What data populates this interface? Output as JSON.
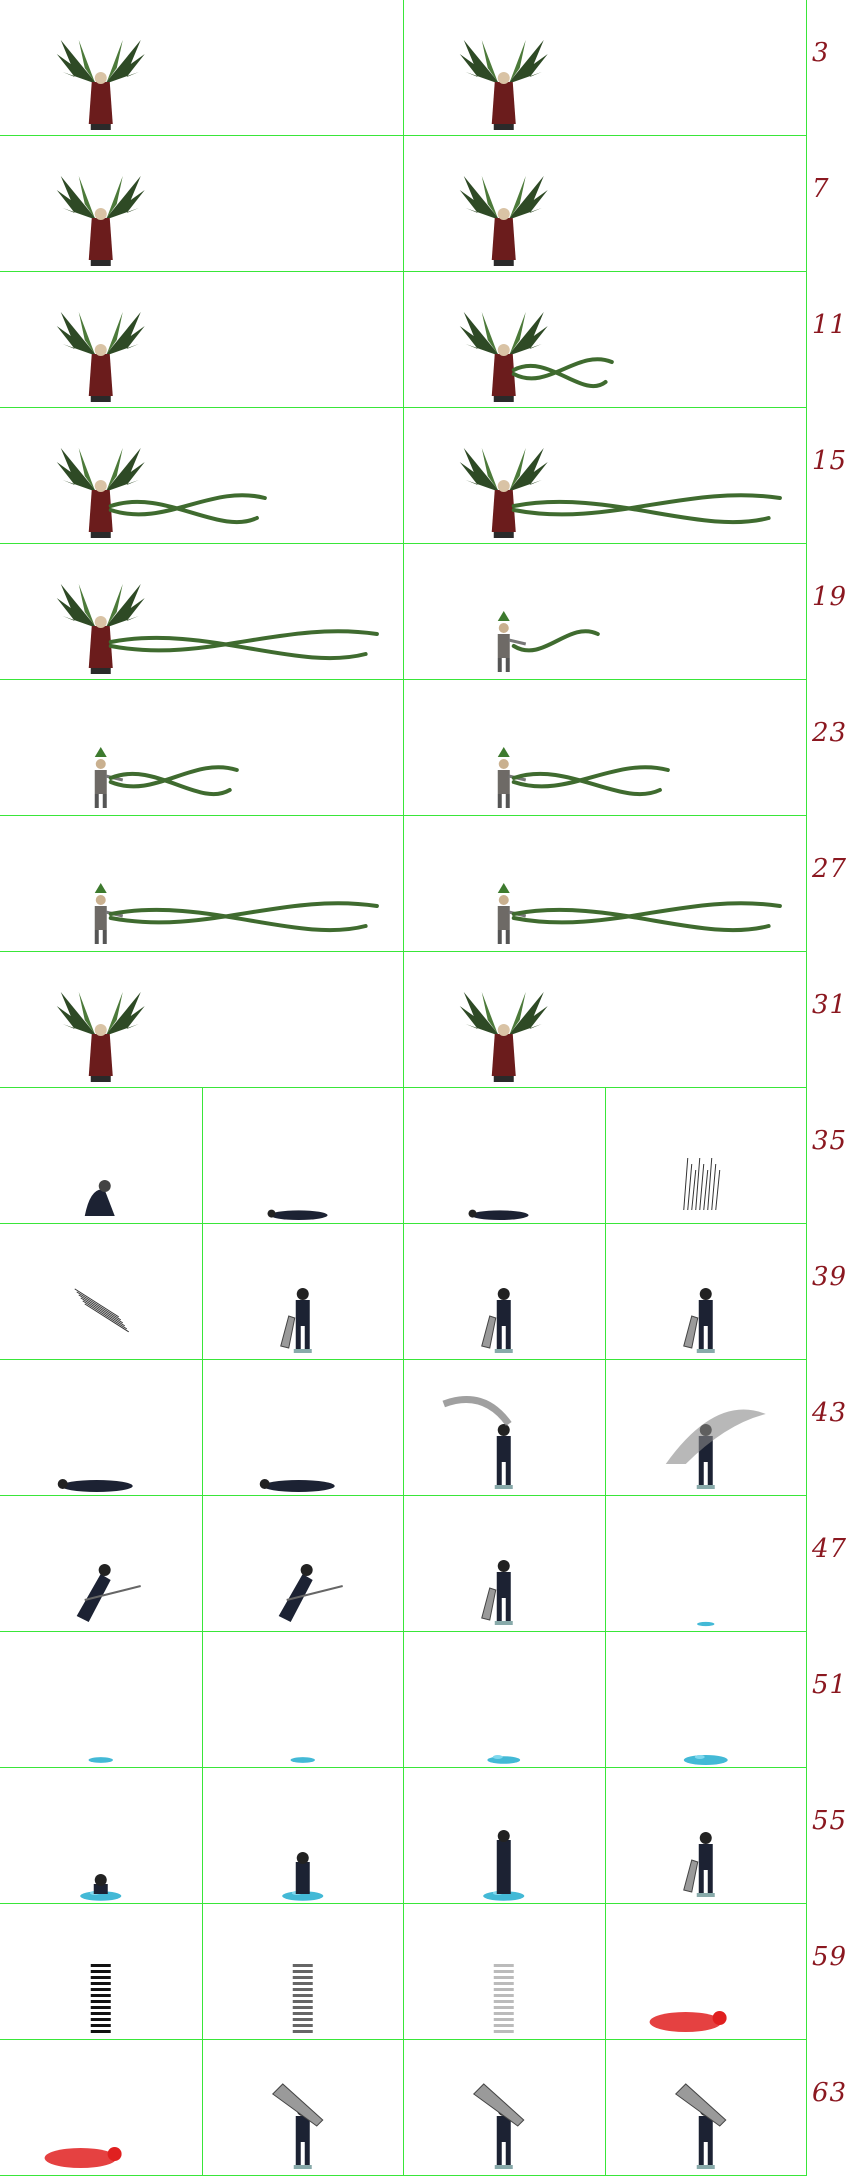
{
  "sheet": {
    "labels": [
      "3",
      "7",
      "11",
      "15",
      "19",
      "23",
      "27",
      "31",
      "35",
      "39",
      "43",
      "47",
      "51",
      "55",
      "59",
      "63"
    ]
  },
  "rows": [
    {
      "cols": 2,
      "frames": [
        "wings",
        "wings"
      ]
    },
    {
      "cols": 2,
      "frames": [
        "wings",
        "wings"
      ]
    },
    {
      "cols": 2,
      "frames": [
        "wings",
        "wings-vine1"
      ]
    },
    {
      "cols": 2,
      "frames": [
        "wings-vine2",
        "wings-vine3"
      ]
    },
    {
      "cols": 2,
      "frames": [
        "wings-vine3",
        "man-vine0"
      ]
    },
    {
      "cols": 2,
      "frames": [
        "man-vine1",
        "man-vine2"
      ]
    },
    {
      "cols": 2,
      "frames": [
        "man-vine3",
        "man-vine3"
      ]
    },
    {
      "cols": 2,
      "frames": [
        "wings",
        "wings"
      ]
    },
    {
      "cols": 4,
      "frames": [
        "ninja-crouch",
        "ninja-lying-small",
        "ninja-lying-small",
        "ninja-streaks"
      ]
    },
    {
      "cols": 4,
      "frames": [
        "slash-marks",
        "ninja-sword-stand",
        "ninja-sword-step",
        "ninja-sword-kick"
      ]
    },
    {
      "cols": 4,
      "frames": [
        "ninja-fall",
        "ninja-lying",
        "ninja-swing",
        "ninja-spin"
      ]
    },
    {
      "cols": 4,
      "frames": [
        "ninja-dash",
        "ninja-dash",
        "ninja-sword-stand",
        "water-tiny"
      ]
    },
    {
      "cols": 4,
      "frames": [
        "water-small",
        "water-small",
        "water-mid",
        "water-big"
      ]
    },
    {
      "cols": 4,
      "frames": [
        "rise-water1",
        "rise-water2",
        "rise-water3",
        "ninja-sword-stand"
      ]
    },
    {
      "cols": 4,
      "frames": [
        "ghost-dark",
        "ghost-mid",
        "ghost-light",
        "red-lying"
      ]
    },
    {
      "cols": 4,
      "frames": [
        "red-lying",
        "sword-shoulder",
        "sword-shoulder",
        "sword-shoulder"
      ]
    }
  ],
  "colors": {
    "grid": "#39e639",
    "label": "#8b1820",
    "vine": "#3f6b2f",
    "wing": "#2e4a25",
    "robe": "#6b1c1c",
    "ninja": "#1c2233",
    "water": "#43b9d6",
    "red": "#e02020"
  }
}
